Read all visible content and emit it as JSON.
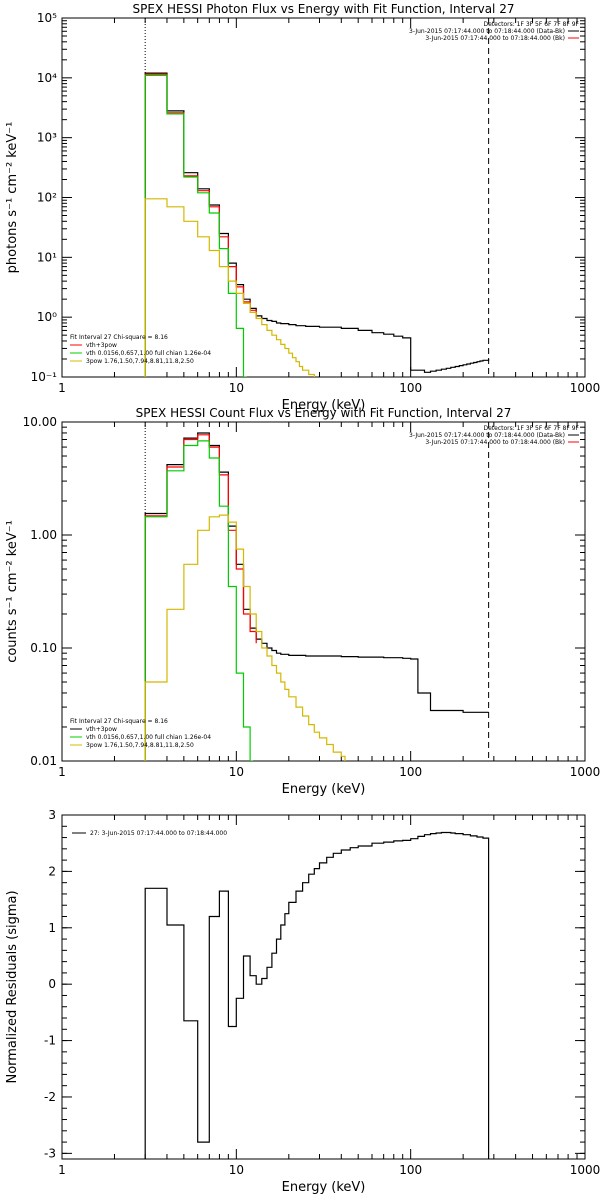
{
  "chart_data": [
    {
      "type": "line",
      "title": "SPEX HESSI Photon Flux vs Energy with Fit Function, Interval 27",
      "xlabel": "Energy (keV)",
      "ylabel": "photons s⁻¹ cm⁻² keV⁻¹",
      "xscale": "log",
      "yscale": "log",
      "xlim": [
        1,
        1000
      ],
      "ylim": [
        0.1,
        100000
      ],
      "x_ticks": [
        "1",
        "10",
        "100",
        "1000"
      ],
      "y_ticks": [
        "10⁻¹",
        "10⁰",
        "10¹",
        "10²",
        "10³",
        "10⁴",
        "10⁵"
      ],
      "grid": false,
      "legend_position": "top-right",
      "detectors_text": "Detectors: 1F 3F 5F 6F 7F 8F 9F",
      "legend_entries": [
        "3-Jun-2015 07:17:44.000 to 07:18:44.000 (Data-Bk)",
        "3-Jun-2015 07:17:44.000 to 07:18:44.000 (Bk)"
      ],
      "fit_legend": {
        "header": "Fit Interval 27   Chi-square = 8.16",
        "entries": [
          "vth+3pow",
          "vth 0.0156,0.657,1.00  full chian 1.26e-04",
          "3pow 1.76,1.50,7.94,8.81,11.8,2.50"
        ]
      },
      "vlines": [
        {
          "x": 3,
          "style": "dotted"
        },
        {
          "x": 280,
          "style": "dashed"
        }
      ],
      "series": [
        {
          "color": "#000000",
          "x": [
            3,
            3.5,
            4,
            5,
            6,
            6.5,
            7,
            8,
            9,
            10,
            11,
            12,
            13,
            14,
            15,
            16,
            17,
            18,
            20,
            22,
            25,
            30,
            40,
            50,
            60,
            70,
            80,
            90,
            100,
            110,
            120,
            130,
            140,
            150,
            160,
            170,
            180,
            190,
            200,
            210,
            220,
            230,
            240,
            250,
            260,
            280
          ],
          "y": [
            12000,
            12000,
            2800,
            260,
            140,
            140,
            75,
            25,
            8,
            3.5,
            2,
            1.4,
            1.05,
            0.95,
            0.88,
            0.85,
            0.8,
            0.78,
            0.75,
            0.72,
            0.7,
            0.68,
            0.65,
            0.6,
            0.55,
            0.52,
            0.48,
            0.45,
            0.13,
            0.13,
            0.12,
            0.125,
            0.13,
            0.135,
            0.14,
            0.145,
            0.15,
            0.155,
            0.16,
            0.165,
            0.17,
            0.175,
            0.18,
            0.185,
            0.19,
            0.2
          ]
        },
        {
          "color": "#ff0000",
          "x": [
            3,
            3.5,
            4,
            5,
            6,
            6.5,
            7,
            8,
            9,
            10,
            11,
            12,
            13
          ],
          "y": [
            11500,
            11500,
            2600,
            230,
            130,
            130,
            70,
            22,
            7,
            3.2,
            1.8,
            1.3,
            0.95
          ]
        },
        {
          "color": "#00cc00",
          "x": [
            3,
            3.5,
            4,
            5,
            6,
            6.5,
            7,
            8,
            9,
            10,
            11,
            11.5
          ],
          "y": [
            11000,
            11000,
            2500,
            220,
            120,
            120,
            55,
            14,
            2.5,
            0.65,
            0.1,
            0.1
          ]
        },
        {
          "color": "#d4b800",
          "x": [
            3,
            3.5,
            4,
            5,
            6,
            6.5,
            7,
            8,
            9,
            10,
            11,
            12,
            13,
            14,
            15,
            16,
            17,
            18,
            19,
            20,
            21,
            22,
            23,
            24,
            26,
            28
          ],
          "y": [
            95,
            95,
            70,
            40,
            22,
            22,
            13,
            7,
            4,
            2.5,
            1.7,
            1.2,
            0.95,
            0.75,
            0.6,
            0.5,
            0.42,
            0.35,
            0.3,
            0.25,
            0.21,
            0.18,
            0.15,
            0.13,
            0.11,
            0.1
          ]
        }
      ]
    },
    {
      "type": "line",
      "title": "SPEX HESSI Count Flux vs Energy with Fit Function, Interval 27",
      "xlabel": "Energy (keV)",
      "ylabel": "counts s⁻¹ cm⁻² keV⁻¹",
      "xscale": "log",
      "yscale": "log",
      "xlim": [
        1,
        1000
      ],
      "ylim": [
        0.01,
        10
      ],
      "x_ticks": [
        "1",
        "10",
        "100",
        "1000"
      ],
      "y_ticks": [
        "0.01",
        "0.10",
        "1.00",
        "10.00"
      ],
      "grid": false,
      "legend_position": "top-right",
      "detectors_text": "Detectors: 1F 3F 5F 6F 7F 8F 9F",
      "legend_entries": [
        "3-Jun-2015 07:17:44.000 to 07:18:44.000 (Data-Bk)",
        "3-Jun-2015 07:17:44.000 to 07:18:44.000 (Bk)"
      ],
      "fit_legend": {
        "header": "Fit Interval 27   Chi-square = 8.16",
        "entries": [
          "vth+3pow",
          "vth 0.0156,0.657,1.00  full chian 1.26e-04",
          "3pow 1.76,1.50,7.94,8.81,11.8,2.50"
        ]
      },
      "vlines": [
        {
          "x": 3,
          "style": "dotted"
        },
        {
          "x": 280,
          "style": "dashed"
        }
      ],
      "series": [
        {
          "color": "#000000",
          "x": [
            3,
            3.5,
            4,
            5,
            6,
            6.5,
            7,
            8,
            9,
            10,
            11,
            12,
            13,
            14,
            15,
            16,
            17,
            18,
            20,
            25,
            30,
            40,
            50,
            60,
            70,
            80,
            90,
            100,
            110,
            130,
            150,
            200,
            280
          ],
          "y": [
            1.55,
            1.55,
            4.2,
            7.2,
            8,
            8,
            6.2,
            3.6,
            1.2,
            0.55,
            0.22,
            0.15,
            0.12,
            0.11,
            0.1,
            0.095,
            0.09,
            0.088,
            0.086,
            0.085,
            0.085,
            0.084,
            0.083,
            0.083,
            0.082,
            0.082,
            0.081,
            0.08,
            0.04,
            0.028,
            0.028,
            0.027,
            0.027
          ]
        },
        {
          "color": "#ff0000",
          "x": [
            3,
            3.5,
            4,
            5,
            6,
            6.5,
            7,
            8,
            9,
            10,
            11,
            12,
            13
          ],
          "y": [
            1.48,
            1.48,
            4,
            7,
            7.7,
            7.7,
            6,
            3.4,
            1.1,
            0.5,
            0.2,
            0.14,
            0.11
          ]
        },
        {
          "color": "#00cc00",
          "x": [
            3,
            3.5,
            4,
            5,
            6,
            6.5,
            7,
            8,
            9,
            10,
            11,
            12,
            12.5
          ],
          "y": [
            1.45,
            1.45,
            3.7,
            6.2,
            6.8,
            6.8,
            4.8,
            1.8,
            0.35,
            0.06,
            0.02,
            0.01,
            0.01
          ]
        },
        {
          "color": "#d4b800",
          "x": [
            3,
            3.5,
            4,
            5,
            6,
            6.5,
            7,
            8,
            9,
            10,
            11,
            12,
            13,
            14,
            15,
            16,
            17,
            18,
            19,
            20,
            22,
            24,
            26,
            28,
            30,
            33,
            36,
            40,
            42
          ],
          "y": [
            0.05,
            0.05,
            0.22,
            0.55,
            1.1,
            1.1,
            1.45,
            1.5,
            1.3,
            0.75,
            0.35,
            0.2,
            0.14,
            0.1,
            0.085,
            0.07,
            0.06,
            0.05,
            0.043,
            0.037,
            0.03,
            0.025,
            0.021,
            0.018,
            0.016,
            0.014,
            0.012,
            0.011,
            0.01
          ]
        }
      ]
    },
    {
      "type": "line",
      "title": "",
      "xlabel": "Energy (keV)",
      "ylabel": "Normalized Residuals (sigma)",
      "xscale": "log",
      "yscale": "linear",
      "xlim": [
        1,
        1000
      ],
      "ylim": [
        -3.1,
        3.0
      ],
      "x_ticks": [
        "1",
        "10",
        "100",
        "1000"
      ],
      "y_ticks": [
        "-3",
        "-2",
        "-1",
        "0",
        "1",
        "2",
        "3"
      ],
      "grid": false,
      "legend_position": "top-left",
      "legend_entries": [
        "27:  3-Jun-2015 07:17:44.000 to 07:18:44.000"
      ],
      "series": [
        {
          "color": "#000000",
          "x": [
            3,
            4,
            5,
            6,
            6.5,
            7,
            8,
            9,
            10,
            11,
            12,
            13,
            14,
            15,
            16,
            17,
            18,
            19,
            20,
            22,
            24,
            26,
            28,
            30,
            33,
            36,
            40,
            45,
            50,
            60,
            70,
            80,
            90,
            100,
            110,
            120,
            130,
            140,
            150,
            160,
            170,
            180,
            200,
            220,
            240,
            260,
            280
          ],
          "y": [
            1.7,
            1.05,
            -0.65,
            -2.8,
            -2.8,
            1.2,
            1.65,
            -0.75,
            -0.25,
            0.5,
            0.15,
            0,
            0.1,
            0.3,
            0.55,
            0.8,
            1.05,
            1.25,
            1.45,
            1.65,
            1.8,
            1.95,
            2.05,
            2.15,
            2.25,
            2.32,
            2.38,
            2.42,
            2.45,
            2.5,
            2.52,
            2.54,
            2.55,
            2.58,
            2.62,
            2.65,
            2.67,
            2.68,
            2.69,
            2.69,
            2.68,
            2.67,
            2.65,
            2.63,
            2.61,
            2.59,
            2.57
          ]
        }
      ]
    }
  ]
}
